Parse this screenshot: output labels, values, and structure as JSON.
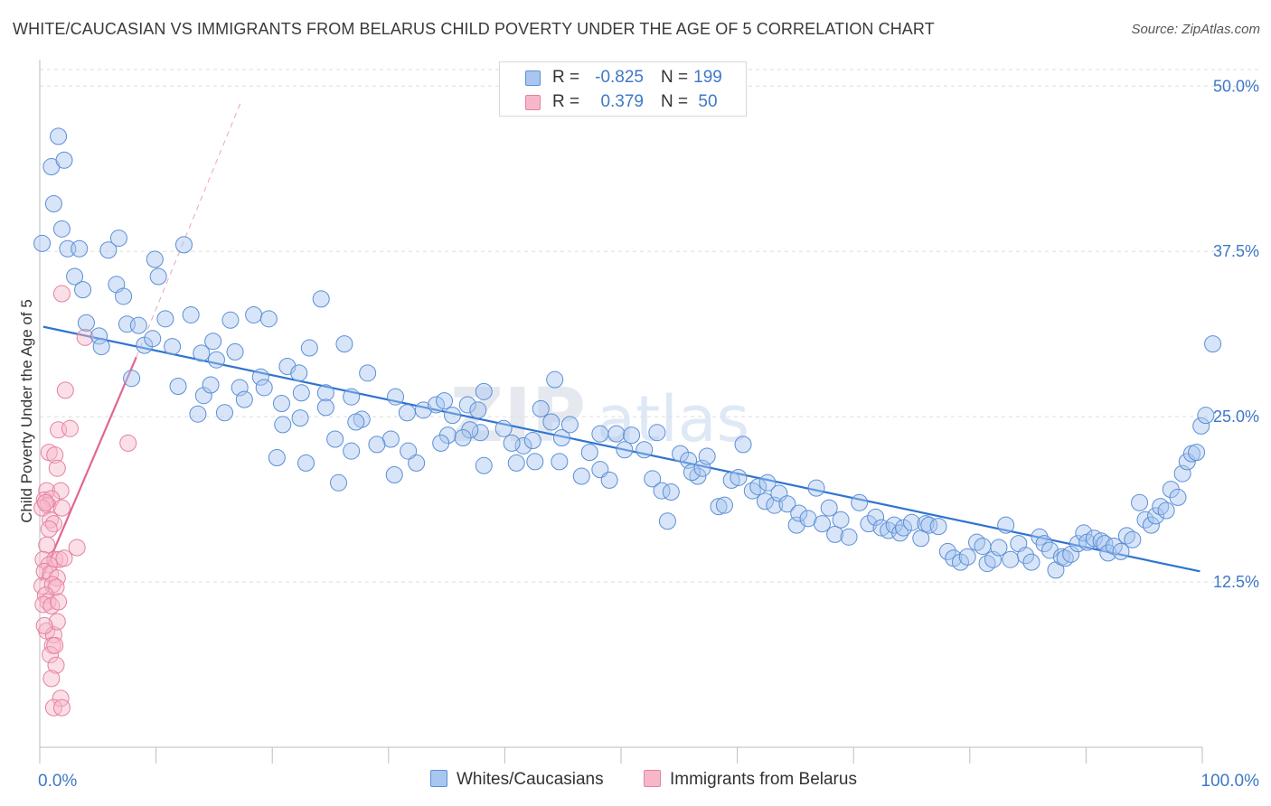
{
  "header": {
    "title": "WHITE/CAUCASIAN VS IMMIGRANTS FROM BELARUS CHILD POVERTY UNDER THE AGE OF 5 CORRELATION CHART",
    "source": "Source: ZipAtlas.com"
  },
  "legend": {
    "rows": [
      {
        "r_label": "R =",
        "r_value": "-0.825",
        "n_label": "N =",
        "n_value": "199"
      },
      {
        "r_label": "R =",
        "r_value": "0.379",
        "n_label": "N =",
        "n_value": "50"
      }
    ]
  },
  "bottom_legend": {
    "whites": "Whites/Caucasians",
    "belarus": "Immigrants from Belarus"
  },
  "watermark": {
    "zip": "ZIP",
    "atlas": "atlas"
  },
  "colors": {
    "blue_fill": "#a9c6f0",
    "blue_stroke": "#5b8fd6",
    "blue_line": "#2f74d0",
    "pink_fill": "#f6b8c9",
    "pink_stroke": "#e581a0",
    "pink_line": "#e2668f",
    "grid": "#dedede",
    "tick_label": "#3e78c7"
  },
  "chart_data": {
    "type": "scatter",
    "title": "WHITE/CAUCASIAN VS IMMIGRANTS FROM BELARUS CHILD POVERTY UNDER THE AGE OF 5 CORRELATION CHART",
    "xlabel": "",
    "ylabel": "Child Poverty Under the Age of 5",
    "xlim": [
      0,
      100
    ],
    "ylim": [
      0,
      52
    ],
    "x_tick_labels": [
      "0.0%",
      "100.0%"
    ],
    "y_ticks": [
      {
        "value": 12.5,
        "label": "12.5%"
      },
      {
        "value": 25.0,
        "label": "25.0%"
      },
      {
        "value": 37.5,
        "label": "37.5%"
      },
      {
        "value": 50.0,
        "label": "50.0%"
      }
    ],
    "grid": true,
    "series": [
      {
        "name": "Whites/Caucasians",
        "R": -0.825,
        "N": 199,
        "trend": {
          "x0": 0.3,
          "y0": 31.8,
          "x1": 99.8,
          "y1": 13.3
        },
        "points": [
          [
            1.6,
            46.2
          ],
          [
            1.0,
            43.9
          ],
          [
            1.9,
            39.2
          ],
          [
            0.2,
            38.1
          ],
          [
            2.4,
            37.7
          ],
          [
            3.4,
            37.7
          ],
          [
            5.9,
            37.6
          ],
          [
            6.8,
            38.5
          ],
          [
            10.2,
            35.6
          ],
          [
            3.0,
            35.6
          ],
          [
            12.4,
            38.0
          ],
          [
            4.0,
            32.1
          ],
          [
            5.1,
            31.1
          ],
          [
            5.3,
            30.3
          ],
          [
            7.5,
            32.0
          ],
          [
            8.5,
            31.9
          ],
          [
            9.0,
            30.4
          ],
          [
            9.7,
            30.9
          ],
          [
            10.8,
            32.4
          ],
          [
            11.4,
            30.3
          ],
          [
            13.0,
            32.7
          ],
          [
            13.9,
            29.8
          ],
          [
            14.9,
            30.7
          ],
          [
            15.2,
            29.3
          ],
          [
            16.4,
            32.3
          ],
          [
            16.8,
            29.9
          ],
          [
            18.4,
            32.7
          ],
          [
            19.7,
            32.4
          ],
          [
            24.2,
            33.9
          ],
          [
            26.2,
            30.5
          ],
          [
            23.2,
            30.2
          ],
          [
            21.3,
            28.8
          ],
          [
            22.3,
            28.3
          ],
          [
            19.0,
            28.0
          ],
          [
            17.2,
            27.2
          ],
          [
            17.6,
            26.3
          ],
          [
            14.1,
            26.6
          ],
          [
            14.7,
            27.4
          ],
          [
            11.9,
            27.3
          ],
          [
            7.9,
            27.9
          ],
          [
            13.6,
            25.2
          ],
          [
            15.9,
            25.3
          ],
          [
            19.3,
            27.2
          ],
          [
            20.8,
            26.0
          ],
          [
            22.5,
            26.8
          ],
          [
            24.6,
            26.8
          ],
          [
            26.8,
            26.5
          ],
          [
            28.2,
            28.3
          ],
          [
            27.7,
            24.8
          ],
          [
            30.6,
            26.5
          ],
          [
            31.6,
            25.3
          ],
          [
            30.2,
            23.3
          ],
          [
            33.0,
            25.5
          ],
          [
            34.1,
            25.9
          ],
          [
            35.5,
            25.1
          ],
          [
            36.8,
            25.9
          ],
          [
            34.8,
            26.2
          ],
          [
            35.1,
            23.6
          ],
          [
            34.5,
            23.0
          ],
          [
            32.4,
            21.5
          ],
          [
            29.0,
            22.9
          ],
          [
            27.2,
            24.6
          ],
          [
            26.8,
            22.4
          ],
          [
            25.4,
            23.3
          ],
          [
            24.6,
            25.7
          ],
          [
            20.9,
            24.4
          ],
          [
            22.4,
            24.9
          ],
          [
            20.4,
            21.9
          ],
          [
            22.9,
            21.5
          ],
          [
            25.7,
            20.0
          ],
          [
            30.5,
            20.6
          ],
          [
            31.7,
            22.4
          ],
          [
            38.2,
            26.9
          ],
          [
            37.7,
            25.5
          ],
          [
            37.9,
            23.8
          ],
          [
            37.0,
            24.0
          ],
          [
            36.4,
            23.4
          ],
          [
            38.2,
            21.3
          ],
          [
            39.9,
            24.1
          ],
          [
            41.6,
            22.8
          ],
          [
            41.0,
            21.5
          ],
          [
            40.6,
            23.0
          ],
          [
            42.6,
            21.6
          ],
          [
            42.4,
            23.2
          ],
          [
            43.1,
            25.6
          ],
          [
            44.0,
            24.6
          ],
          [
            44.3,
            27.8
          ],
          [
            44.9,
            23.4
          ],
          [
            45.6,
            24.4
          ],
          [
            47.3,
            22.3
          ],
          [
            46.6,
            20.5
          ],
          [
            44.7,
            21.6
          ],
          [
            48.2,
            21.0
          ],
          [
            48.2,
            23.7
          ],
          [
            49.6,
            23.7
          ],
          [
            49.0,
            20.2
          ],
          [
            50.3,
            22.5
          ],
          [
            50.9,
            23.6
          ],
          [
            52.0,
            22.5
          ],
          [
            52.7,
            20.3
          ],
          [
            53.1,
            23.8
          ],
          [
            53.5,
            19.4
          ],
          [
            54.3,
            19.3
          ],
          [
            54.0,
            17.1
          ],
          [
            55.1,
            22.2
          ],
          [
            55.8,
            21.7
          ],
          [
            56.6,
            20.5
          ],
          [
            56.1,
            20.8
          ],
          [
            57.0,
            21.1
          ],
          [
            57.4,
            22.0
          ],
          [
            58.4,
            18.2
          ],
          [
            58.9,
            18.3
          ],
          [
            59.5,
            20.2
          ],
          [
            60.1,
            20.4
          ],
          [
            60.5,
            22.9
          ],
          [
            61.3,
            19.4
          ],
          [
            61.8,
            19.7
          ],
          [
            62.4,
            18.6
          ],
          [
            62.6,
            20.0
          ],
          [
            63.2,
            18.3
          ],
          [
            63.6,
            19.2
          ],
          [
            64.3,
            18.4
          ],
          [
            65.1,
            16.8
          ],
          [
            65.3,
            17.7
          ],
          [
            66.1,
            17.3
          ],
          [
            66.8,
            19.6
          ],
          [
            67.3,
            16.9
          ],
          [
            67.9,
            18.1
          ],
          [
            68.4,
            16.1
          ],
          [
            68.9,
            17.2
          ],
          [
            69.6,
            15.9
          ],
          [
            70.5,
            18.5
          ],
          [
            71.3,
            16.9
          ],
          [
            71.9,
            17.4
          ],
          [
            72.4,
            16.6
          ],
          [
            73.0,
            16.4
          ],
          [
            73.5,
            16.8
          ],
          [
            74.0,
            16.2
          ],
          [
            74.3,
            16.6
          ],
          [
            75.0,
            17.0
          ],
          [
            75.8,
            15.8
          ],
          [
            76.2,
            16.9
          ],
          [
            76.5,
            16.8
          ],
          [
            77.3,
            16.7
          ],
          [
            78.1,
            14.8
          ],
          [
            78.6,
            14.3
          ],
          [
            79.2,
            14.0
          ],
          [
            79.8,
            14.4
          ],
          [
            80.6,
            15.5
          ],
          [
            81.1,
            15.2
          ],
          [
            81.5,
            13.9
          ],
          [
            82.0,
            14.2
          ],
          [
            82.5,
            15.1
          ],
          [
            83.1,
            16.8
          ],
          [
            83.5,
            14.2
          ],
          [
            84.2,
            15.4
          ],
          [
            84.8,
            14.5
          ],
          [
            85.3,
            14.0
          ],
          [
            86.0,
            15.9
          ],
          [
            86.4,
            15.4
          ],
          [
            86.9,
            14.9
          ],
          [
            87.4,
            13.4
          ],
          [
            87.9,
            14.4
          ],
          [
            88.2,
            14.3
          ],
          [
            88.7,
            14.6
          ],
          [
            89.3,
            15.4
          ],
          [
            89.8,
            16.2
          ],
          [
            90.1,
            15.5
          ],
          [
            90.7,
            15.8
          ],
          [
            91.3,
            15.6
          ],
          [
            91.6,
            15.4
          ],
          [
            91.9,
            14.7
          ],
          [
            92.4,
            15.2
          ],
          [
            93.0,
            14.8
          ],
          [
            93.5,
            16.0
          ],
          [
            94.0,
            15.7
          ],
          [
            94.6,
            18.5
          ],
          [
            95.1,
            17.2
          ],
          [
            95.6,
            16.8
          ],
          [
            96.0,
            17.5
          ],
          [
            96.4,
            18.2
          ],
          [
            96.9,
            17.9
          ],
          [
            97.3,
            19.5
          ],
          [
            97.9,
            18.9
          ],
          [
            98.3,
            20.7
          ],
          [
            98.7,
            21.6
          ],
          [
            99.1,
            22.2
          ],
          [
            99.5,
            22.3
          ],
          [
            99.9,
            24.3
          ],
          [
            100.3,
            25.1
          ],
          [
            100.9,
            30.5
          ],
          [
            1.2,
            41.1
          ],
          [
            2.1,
            44.4
          ],
          [
            6.6,
            35.0
          ],
          [
            7.2,
            34.1
          ],
          [
            3.7,
            34.6
          ],
          [
            9.9,
            36.9
          ]
        ]
      },
      {
        "name": "Immigrants from Belarus",
        "R": 0.379,
        "N": 50,
        "trend": {
          "x0": 0.1,
          "y0": 12.6,
          "x1": 8.3,
          "y1": 29.5
        },
        "trend_dashed": {
          "x0": 8.3,
          "y0": 29.5,
          "x1": 17.3,
          "y1": 48.8
        },
        "points": [
          [
            1.9,
            34.3
          ],
          [
            3.9,
            31.0
          ],
          [
            2.2,
            27.0
          ],
          [
            7.6,
            23.0
          ],
          [
            1.6,
            24.0
          ],
          [
            2.6,
            24.1
          ],
          [
            0.8,
            22.3
          ],
          [
            1.3,
            22.1
          ],
          [
            1.5,
            21.1
          ],
          [
            0.6,
            19.4
          ],
          [
            1.8,
            19.4
          ],
          [
            0.4,
            18.7
          ],
          [
            1.0,
            18.8
          ],
          [
            0.7,
            18.3
          ],
          [
            0.2,
            18.1
          ],
          [
            1.9,
            18.1
          ],
          [
            0.9,
            17.2
          ],
          [
            1.2,
            16.9
          ],
          [
            0.6,
            15.3
          ],
          [
            3.2,
            15.1
          ],
          [
            0.3,
            14.2
          ],
          [
            1.3,
            14.2
          ],
          [
            1.7,
            14.2
          ],
          [
            0.8,
            13.8
          ],
          [
            0.4,
            13.3
          ],
          [
            0.9,
            13.1
          ],
          [
            1.5,
            12.8
          ],
          [
            0.2,
            12.2
          ],
          [
            1.1,
            12.3
          ],
          [
            1.4,
            12.1
          ],
          [
            0.5,
            11.5
          ],
          [
            0.7,
            11.0
          ],
          [
            0.3,
            10.8
          ],
          [
            1.0,
            10.7
          ],
          [
            0.6,
            8.8
          ],
          [
            1.2,
            8.5
          ],
          [
            1.5,
            9.5
          ],
          [
            1.1,
            7.7
          ],
          [
            0.9,
            7.0
          ],
          [
            1.3,
            7.7
          ],
          [
            1.4,
            6.2
          ],
          [
            1.0,
            5.2
          ],
          [
            1.8,
            3.7
          ],
          [
            1.2,
            3.0
          ],
          [
            1.9,
            3.0
          ],
          [
            0.5,
            18.5
          ],
          [
            0.8,
            16.5
          ],
          [
            1.6,
            11.0
          ],
          [
            0.4,
            9.2
          ],
          [
            2.1,
            14.3
          ]
        ]
      }
    ]
  }
}
